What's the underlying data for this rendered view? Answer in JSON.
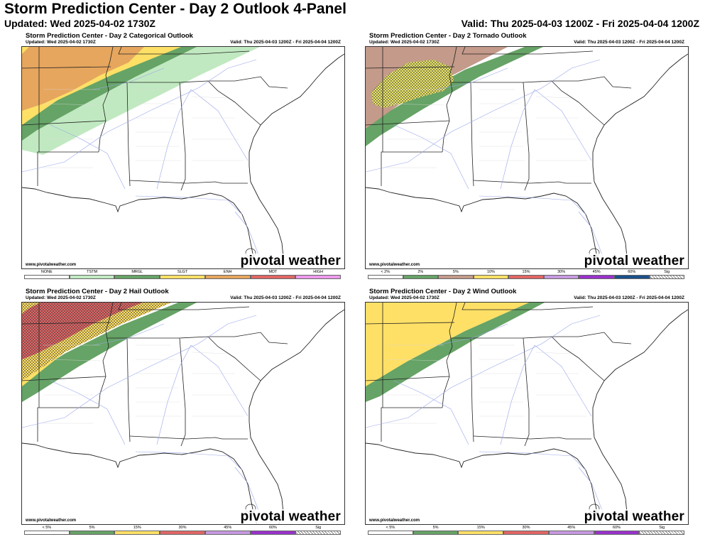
{
  "header": {
    "title": "Storm Prediction Center - Day 2 Outlook 4-Panel",
    "updated": "Updated: Wed 2025-04-02 1730Z",
    "valid": "Valid: Thu 2025-04-03 1200Z - Fri 2025-04-04 1200Z"
  },
  "panels": [
    {
      "title": "Storm Prediction Center - Day 2 Categorical Outlook",
      "updated": "Updated: Wed 2025-04-02 1730Z",
      "valid": "Valid: Thu 2025-04-03 1200Z - Fri 2025-04-04 1200Z",
      "credit": "www.pivotalweather.com",
      "brand": "pivotal weather",
      "legend": [
        {
          "label": "NONE",
          "color": "#ffffff"
        },
        {
          "label": "TSTM",
          "color": "#c1e9c1"
        },
        {
          "label": "MRGL",
          "color": "#66a366"
        },
        {
          "label": "SLGT",
          "color": "#ffe066"
        },
        {
          "label": "ENH",
          "color": "#e6a65e"
        },
        {
          "label": "MDT",
          "color": "#e06666"
        },
        {
          "label": "HIGH",
          "color": "#ee99ee"
        }
      ]
    },
    {
      "title": "Storm Prediction Center - Day 2 Tornado Outlook",
      "updated": "Updated: Wed 2025-04-02 1730Z",
      "valid": "Valid: Thu 2025-04-03 1200Z - Fri 2025-04-04 1200Z",
      "credit": "www.pivotalweather.com",
      "brand": "pivotal weather",
      "legend": [
        {
          "label": "< 2%",
          "color": "#ffffff"
        },
        {
          "label": "2%",
          "color": "#66a366"
        },
        {
          "label": "5%",
          "color": "#c49a8a"
        },
        {
          "label": "10%",
          "color": "#ffe066"
        },
        {
          "label": "15%",
          "color": "#e06666"
        },
        {
          "label": "30%",
          "color": "#c799e0"
        },
        {
          "label": "45%",
          "color": "#9932cc"
        },
        {
          "label": "60%",
          "color": "#1a4f8a"
        },
        {
          "label": "Sig",
          "color": "hatch"
        }
      ]
    },
    {
      "title": "Storm Prediction Center - Day 2 Hail Outlook",
      "updated": "Updated: Wed 2025-04-02 1730Z",
      "valid": "Valid: Thu 2025-04-03 1200Z - Fri 2025-04-04 1200Z",
      "credit": "www.pivotalweather.com",
      "brand": "pivotal weather",
      "legend": [
        {
          "label": "< 5%",
          "color": "#ffffff"
        },
        {
          "label": "5%",
          "color": "#66a366"
        },
        {
          "label": "15%",
          "color": "#ffe066"
        },
        {
          "label": "30%",
          "color": "#e06666"
        },
        {
          "label": "45%",
          "color": "#c799e0"
        },
        {
          "label": "60%",
          "color": "#9932cc"
        },
        {
          "label": "Sig",
          "color": "hatch"
        }
      ]
    },
    {
      "title": "Storm Prediction Center - Day 2 Wind Outlook",
      "updated": "Updated: Wed 2025-04-02 1730Z",
      "valid": "Valid: Thu 2025-04-03 1200Z - Fri 2025-04-04 1200Z",
      "credit": "www.pivotalweather.com",
      "brand": "pivotal weather",
      "legend": [
        {
          "label": "< 5%",
          "color": "#ffffff"
        },
        {
          "label": "5%",
          "color": "#66a366"
        },
        {
          "label": "15%",
          "color": "#ffe066"
        },
        {
          "label": "30%",
          "color": "#e06666"
        },
        {
          "label": "45%",
          "color": "#c799e0"
        },
        {
          "label": "60%",
          "color": "#9932cc"
        },
        {
          "label": "Sig",
          "color": "hatch"
        }
      ]
    }
  ],
  "icons": {
    "brand_logo": "pinwheel-logo-icon"
  }
}
